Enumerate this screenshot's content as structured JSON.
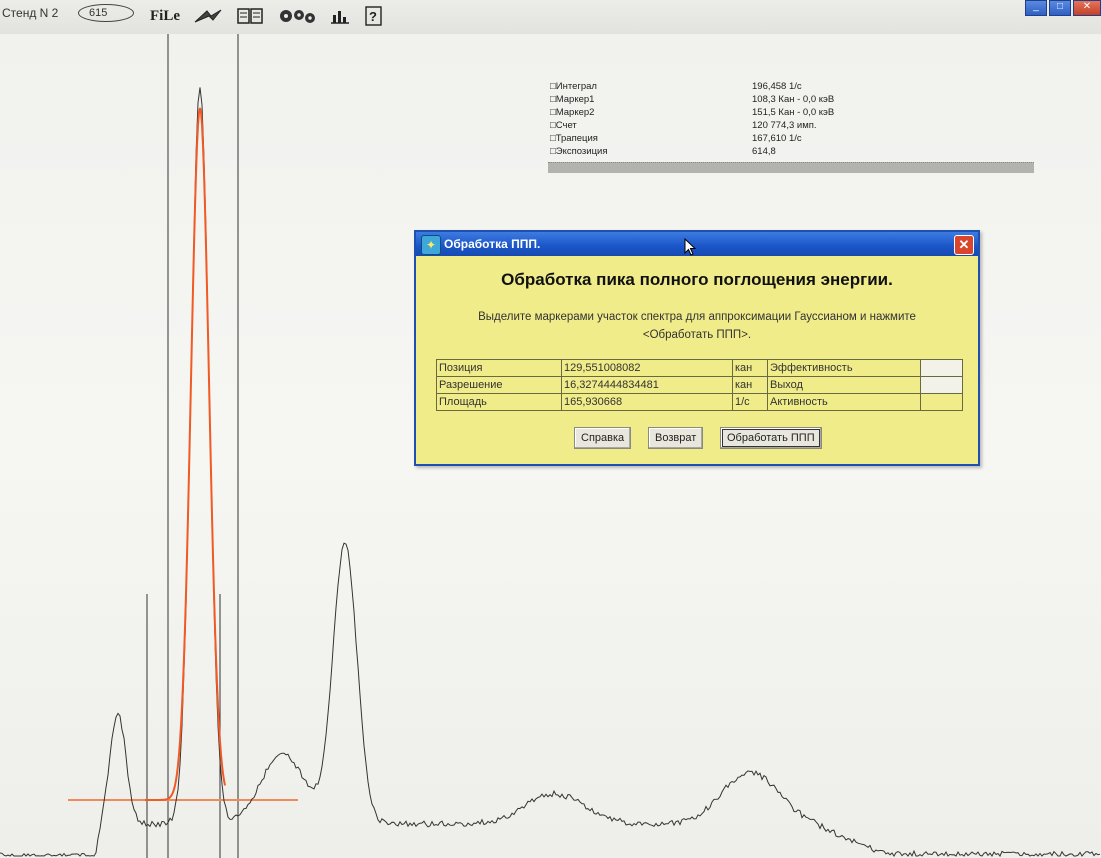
{
  "toolbar": {
    "stand_label": "Стенд N 2",
    "counter": "615",
    "file_label": "FiLe",
    "icons": [
      "zap-icon",
      "book-icon",
      "gears-icon",
      "chart-icon",
      "help-icon"
    ]
  },
  "stats": [
    {
      "name": "Интеграл",
      "value": "196,458 1/с"
    },
    {
      "name": "Маркер1",
      "value": "108,3 Кан -    0,0 кэВ"
    },
    {
      "name": "Маркер2",
      "value": "151,5 Кан -    0,0 кэВ"
    },
    {
      "name": "Счет",
      "value": "120 774,3 имп."
    },
    {
      "name": "Трапеция",
      "value": "167,610 1/с"
    },
    {
      "name": "Экспозиция",
      "value": "614,8"
    }
  ],
  "dialog": {
    "title": "Обработка ППП.",
    "heading": "Обработка пика полного поглощения энергии.",
    "instruction_line1": "Выделите маркерами участок спектра для аппроксимации Гауссианом и нажмите",
    "instruction_line2": "<Обработать ППП>.",
    "rows": [
      {
        "label": "Позиция",
        "value": "129,551008082",
        "unit": "кан",
        "label2": "Эффективность",
        "value2": ""
      },
      {
        "label": "Разрешение",
        "value": "16,3274444834481",
        "unit": "кан",
        "label2": "Выход",
        "value2": ""
      },
      {
        "label": "Площадь",
        "value": "165,930668",
        "unit": "1/с",
        "label2": "Активность",
        "value2": ""
      }
    ],
    "buttons": {
      "help": "Справка",
      "back": "Возврат",
      "process": "Обработать ППП"
    }
  },
  "colors": {
    "title_bar": "#1a55c8",
    "dialog_bg": "#f0ec8a",
    "fit_curve": "#f05a24",
    "spectrum": "#333333"
  }
}
